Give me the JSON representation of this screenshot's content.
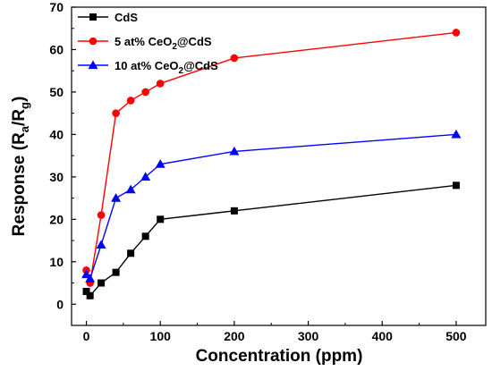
{
  "chart_data": {
    "type": "line",
    "x": [
      0,
      5,
      20,
      40,
      60,
      80,
      100,
      200,
      500
    ],
    "series": [
      {
        "name": "CdS",
        "legend": {
          "prefix": "CdS",
          "subscript": "",
          "suffix": ""
        },
        "values": [
          3,
          2,
          5,
          7.5,
          12,
          16,
          20,
          22,
          28
        ],
        "color": "#000000",
        "marker": "square"
      },
      {
        "name": "5 at% CeO2@CdS",
        "legend": {
          "prefix": "5 at% CeO",
          "subscript": "2",
          "suffix": "@CdS"
        },
        "values": [
          8,
          5,
          21,
          45,
          48,
          50,
          52,
          58,
          64
        ],
        "color": "#ff0000",
        "marker": "circle"
      },
      {
        "name": "10 at% CeO2@CdS",
        "legend": {
          "prefix": "10 at% CeO",
          "subscript": "2",
          "suffix": "@CdS"
        },
        "values": [
          7,
          6,
          14,
          25,
          27,
          30,
          33,
          36,
          40
        ],
        "color": "#0000ff",
        "marker": "triangle"
      }
    ],
    "xlabel": "Concentration (ppm)",
    "ylabel": {
      "prefix": "Response (R",
      "sub1": "a",
      "middle": "/R",
      "sub2": "g",
      "suffix": ")"
    },
    "xlim": [
      -20,
      540
    ],
    "ylim": [
      -5,
      70
    ],
    "xticks": [
      0,
      100,
      200,
      300,
      400,
      500
    ],
    "yticks": [
      0,
      10,
      20,
      30,
      40,
      50,
      60,
      70
    ],
    "grid": false,
    "legend_position": "top-left"
  }
}
